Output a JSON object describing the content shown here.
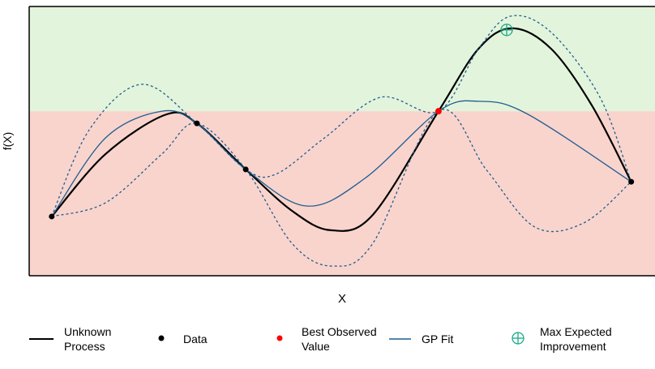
{
  "chart_data": {
    "type": "line",
    "title": "",
    "xlabel": "X",
    "ylabel": "f(X)",
    "xlim": [
      0,
      10
    ],
    "ylim": [
      0,
      10
    ],
    "grid": false,
    "legend_position": "bottom",
    "threshold": 6.11,
    "colors": {
      "improve": "#e3f4dc",
      "below": "#f9d4cd",
      "unknown": "#000000",
      "gp": "#1f5f8f",
      "data": "#000000",
      "best": "#ff0000",
      "ei": "#1aaa88"
    },
    "series": [
      {
        "name": "Unknown Process",
        "points": [
          [
            0.36,
            2.2
          ],
          [
            1.22,
            4.52
          ],
          [
            2.19,
            5.99
          ],
          [
            2.68,
            5.66
          ],
          [
            3.46,
            3.95
          ],
          [
            4.2,
            2.41
          ],
          [
            4.82,
            1.69
          ],
          [
            5.49,
            2.26
          ],
          [
            6.54,
            6.11
          ],
          [
            7.18,
            8.43
          ],
          [
            7.72,
            9.19
          ],
          [
            8.34,
            8.43
          ],
          [
            8.99,
            6.33
          ],
          [
            9.62,
            3.49
          ]
        ]
      },
      {
        "name": "GP Fit",
        "points": [
          [
            0.36,
            2.2
          ],
          [
            1.22,
            5.12
          ],
          [
            2.12,
            6.11
          ],
          [
            2.68,
            5.66
          ],
          [
            3.46,
            3.95
          ],
          [
            4.43,
            2.59
          ],
          [
            5.36,
            3.61
          ],
          [
            6.54,
            6.11
          ],
          [
            7.18,
            6.48
          ],
          [
            7.95,
            6.02
          ],
          [
            9.62,
            3.49
          ]
        ]
      },
      {
        "name": "GP Upper",
        "points": [
          [
            0.36,
            2.2
          ],
          [
            0.96,
            5.42
          ],
          [
            1.8,
            7.11
          ],
          [
            2.68,
            5.66
          ],
          [
            3.46,
            3.95
          ],
          [
            3.94,
            3.77
          ],
          [
            4.72,
            5.12
          ],
          [
            5.62,
            6.63
          ],
          [
            6.54,
            6.11
          ],
          [
            7.18,
            8.43
          ],
          [
            7.69,
            9.64
          ],
          [
            8.34,
            9.04
          ],
          [
            9.12,
            6.63
          ],
          [
            9.62,
            3.49
          ]
        ]
      },
      {
        "name": "GP Lower",
        "points": [
          [
            0.36,
            2.2
          ],
          [
            1.22,
            2.71
          ],
          [
            2.12,
            4.52
          ],
          [
            2.68,
            5.66
          ],
          [
            3.46,
            3.95
          ],
          [
            4.2,
            1.2
          ],
          [
            4.84,
            0.36
          ],
          [
            5.49,
            1.2
          ],
          [
            6.54,
            6.11
          ],
          [
            7.31,
            3.92
          ],
          [
            8.08,
            1.81
          ],
          [
            8.86,
            1.96
          ],
          [
            9.62,
            3.49
          ]
        ]
      }
    ],
    "data_points": [
      [
        0.36,
        2.2
      ],
      [
        2.68,
        5.66
      ],
      [
        3.46,
        3.95
      ],
      [
        9.62,
        3.49
      ]
    ],
    "best_observed": [
      6.54,
      6.11
    ],
    "max_expected_improvement": [
      7.63,
      9.13
    ],
    "legend": [
      "Unknown Process",
      "Data",
      "Best Observed Value",
      "GP Fit",
      "Max Expected Improvement"
    ]
  }
}
